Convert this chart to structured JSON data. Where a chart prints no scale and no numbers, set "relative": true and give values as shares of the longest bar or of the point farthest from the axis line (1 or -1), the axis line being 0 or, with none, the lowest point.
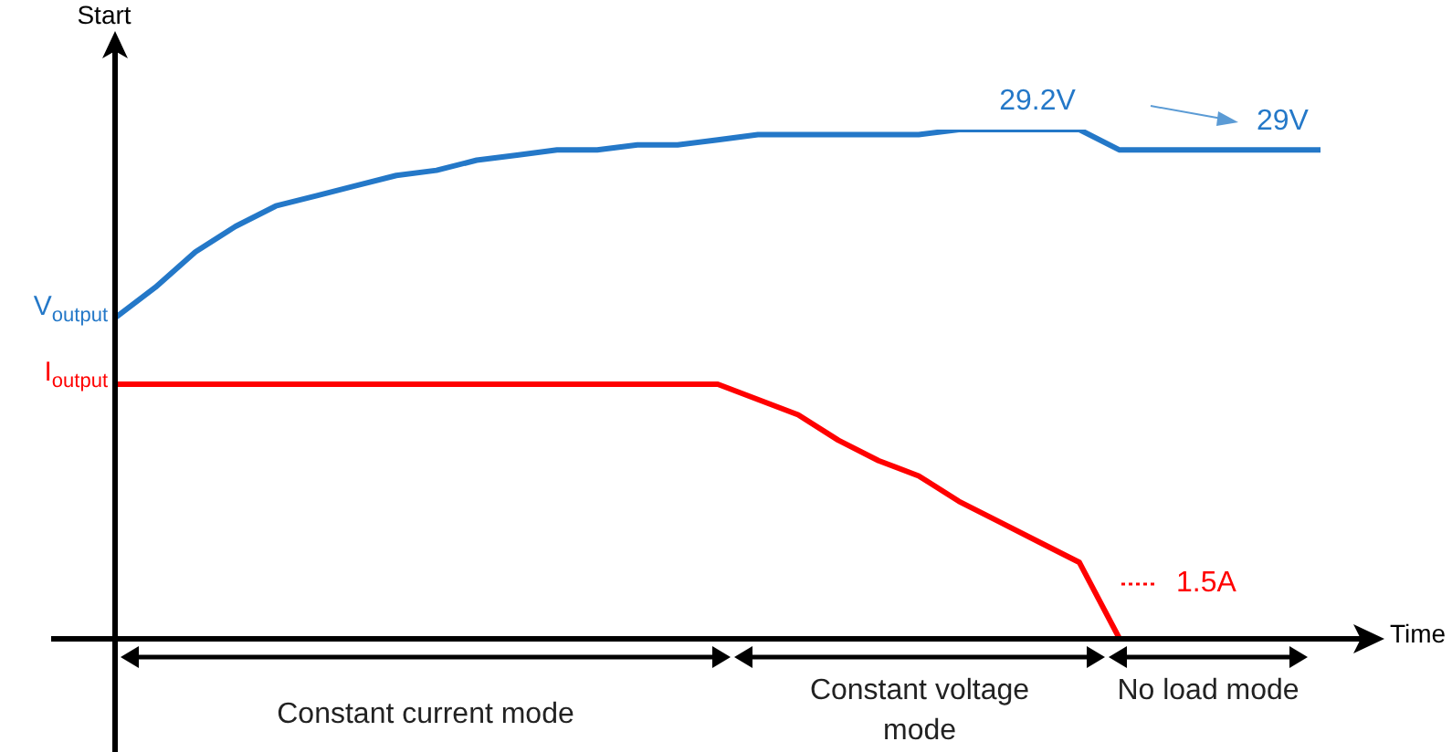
{
  "chart_data": {
    "type": "line",
    "relative": true,
    "ylabel": "Start",
    "xlabel": "Time",
    "legend": false,
    "grid": false,
    "marker": "none",
    "categories": [
      null,
      null,
      null,
      null,
      null,
      null,
      null,
      null,
      null,
      null,
      null,
      null,
      null,
      null,
      null,
      null,
      null,
      null,
      null,
      null,
      null,
      null,
      null,
      null,
      null,
      null,
      null,
      null,
      null,
      null,
      null
    ],
    "series": [
      {
        "name": "V$_{output}$",
        "color": "#2478c8",
        "values": [
          0.63,
          0.69,
          0.76,
          0.81,
          0.85,
          0.87,
          0.89,
          0.91,
          0.92,
          0.94,
          0.95,
          0.96,
          0.96,
          0.97,
          0.97,
          0.98,
          0.99,
          0.99,
          0.99,
          0.99,
          0.99,
          1.0,
          1.0,
          1.0,
          1.0,
          0.96,
          0.96,
          0.96,
          0.96,
          0.96,
          0.96
        ]
      },
      {
        "name": "I$_{output}$",
        "color": "#ff0000",
        "values": [
          0.5,
          0.5,
          0.5,
          0.5,
          0.5,
          0.5,
          0.5,
          0.5,
          0.5,
          0.5,
          0.5,
          0.5,
          0.5,
          0.5,
          0.5,
          0.5,
          0.47,
          0.44,
          0.39,
          0.35,
          0.32,
          0.27,
          0.23,
          0.19,
          0.15,
          0.0,
          null,
          null,
          null,
          null,
          null
        ]
      }
    ],
    "annotations": [
      "Constant current mode",
      "Constant voltage mode",
      "No load mode",
      "29.2V",
      "29V",
      "1.5A"
    ]
  }
}
